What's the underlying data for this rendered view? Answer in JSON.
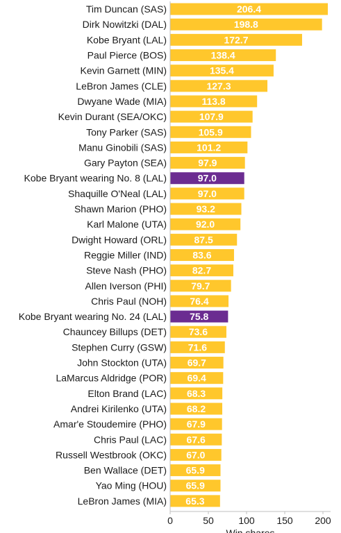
{
  "chart_data": {
    "type": "bar",
    "orientation": "horizontal",
    "xlabel": "Win shares",
    "ylabel": "",
    "xlim": [
      0,
      210
    ],
    "xticks": [
      0,
      50,
      100,
      150,
      200
    ],
    "grid": false,
    "colors": {
      "default": "#FFC72C",
      "highlight": "#6B2C91",
      "value_text": "#ffffff"
    },
    "categories": [
      "Tim Duncan (SAS)",
      "Dirk Nowitzki (DAL)",
      "Kobe Bryant (LAL)",
      "Paul Pierce (BOS)",
      "Kevin Garnett (MIN)",
      "LeBron James (CLE)",
      "Dwyane Wade (MIA)",
      "Kevin Durant (SEA/OKC)",
      "Tony Parker (SAS)",
      "Manu Ginobili (SAS)",
      "Gary Payton (SEA)",
      "Kobe Bryant wearing No. 8 (LAL)",
      "Shaquille O'Neal (LAL)",
      "Shawn Marion (PHO)",
      "Karl Malone (UTA)",
      "Dwight Howard (ORL)",
      "Reggie Miller (IND)",
      "Steve Nash (PHO)",
      "Allen Iverson (PHI)",
      "Chris Paul (NOH)",
      "Kobe Bryant wearing No. 24 (LAL)",
      "Chauncey Billups (DET)",
      "Stephen Curry (GSW)",
      "John Stockton (UTA)",
      "LaMarcus Aldridge (POR)",
      "Elton Brand (LAC)",
      "Andrei Kirilenko (UTA)",
      "Amar'e Stoudemire (PHO)",
      "Chris Paul (LAC)",
      "Russell Westbrook (OKC)",
      "Ben Wallace (DET)",
      "Yao Ming (HOU)",
      "LeBron James (MIA)"
    ],
    "values": [
      206.4,
      198.8,
      172.7,
      138.4,
      135.4,
      127.3,
      113.8,
      107.9,
      105.9,
      101.2,
      97.9,
      97.0,
      97.0,
      93.2,
      92.0,
      87.5,
      83.6,
      82.7,
      79.7,
      76.4,
      75.8,
      73.6,
      71.6,
      69.7,
      69.4,
      68.3,
      68.2,
      67.9,
      67.6,
      67.0,
      65.9,
      65.9,
      65.3
    ],
    "value_labels": [
      "206.4",
      "198.8",
      "172.7",
      "138.4",
      "135.4",
      "127.3",
      "113.8",
      "107.9",
      "105.9",
      "101.2",
      "97.9",
      "97.0",
      "97.0",
      "93.2",
      "92.0",
      "87.5",
      "83.6",
      "82.7",
      "79.7",
      "76.4",
      "75.8",
      "73.6",
      "71.6",
      "69.7",
      "69.4",
      "68.3",
      "68.2",
      "67.9",
      "67.6",
      "67.0",
      "65.9",
      "65.9",
      "65.3"
    ],
    "highlighted": [
      false,
      false,
      false,
      false,
      false,
      false,
      false,
      false,
      false,
      false,
      false,
      true,
      false,
      false,
      false,
      false,
      false,
      false,
      false,
      false,
      true,
      false,
      false,
      false,
      false,
      false,
      false,
      false,
      false,
      false,
      false,
      false,
      false
    ]
  }
}
